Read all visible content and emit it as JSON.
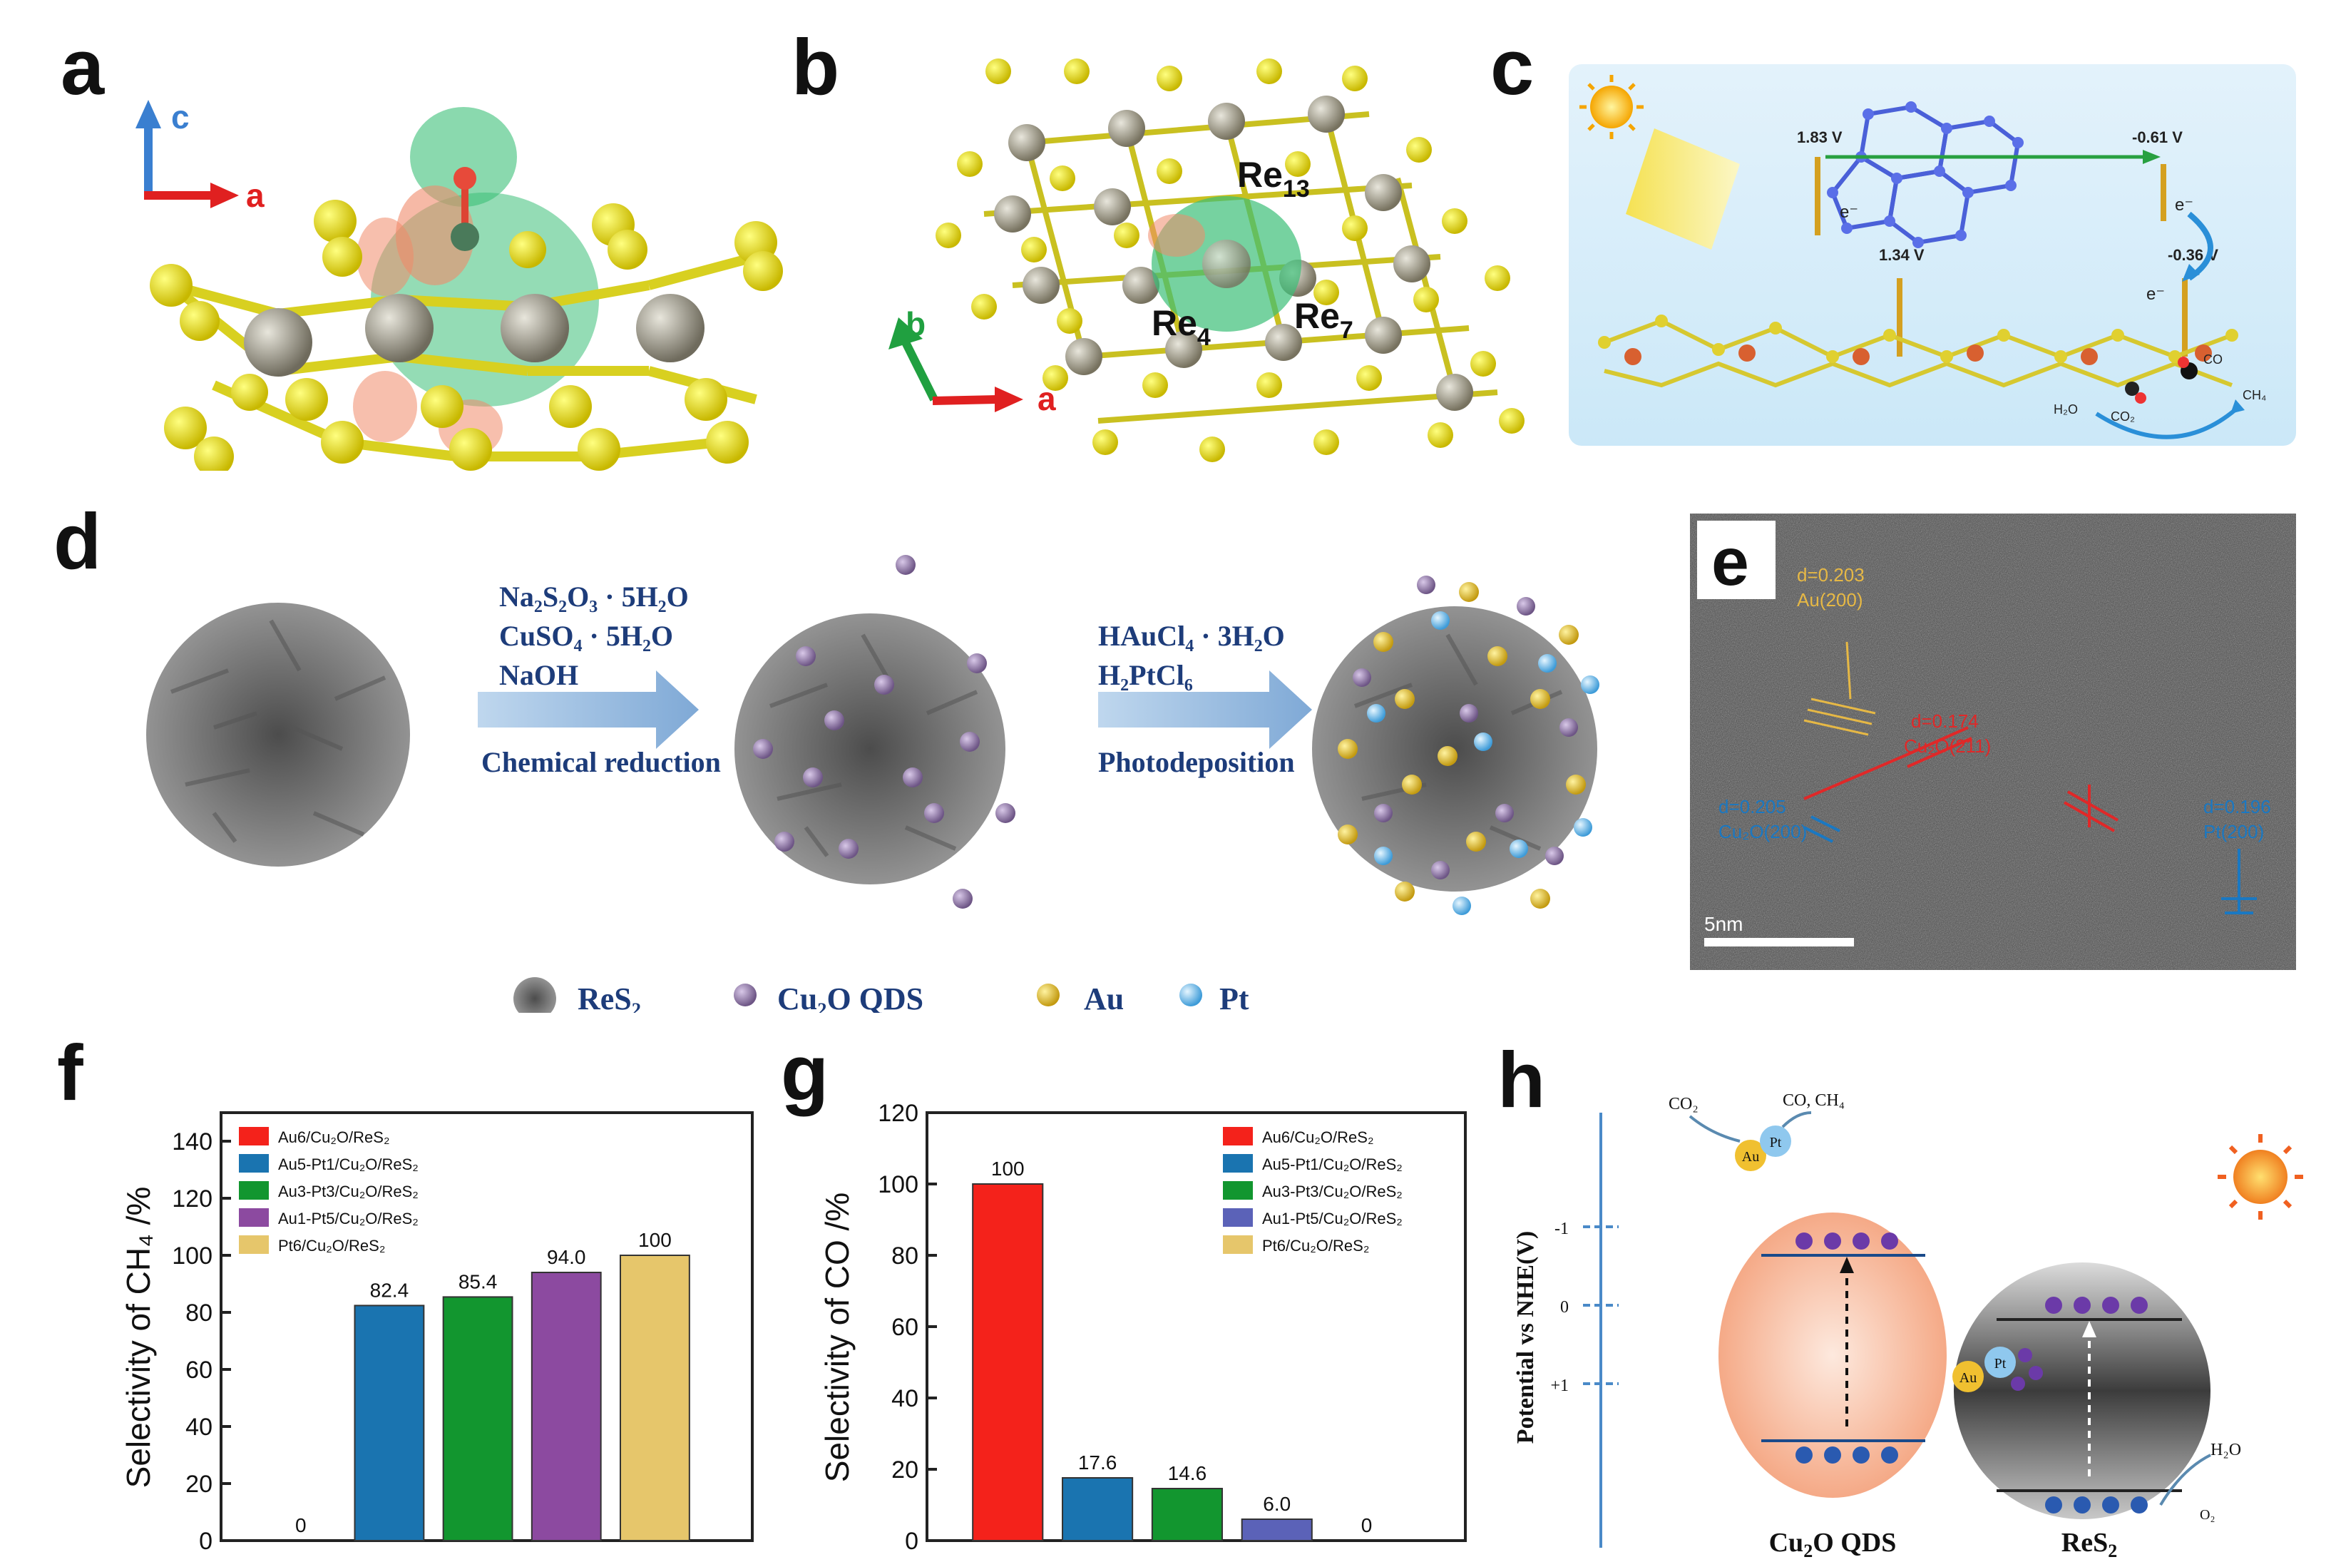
{
  "panels": {
    "a": "a",
    "b": "b",
    "c": "c",
    "d": "d",
    "e": "e",
    "f": "f",
    "g": "g",
    "h": "h"
  },
  "panel_a": {
    "axis_c": "c",
    "axis_a": "a"
  },
  "panel_b": {
    "axis_b": "b",
    "axis_a": "a",
    "atom_re13": "Re13",
    "atom_re4": "Re4",
    "atom_re7": "Re7"
  },
  "panel_c": {
    "v1": "1.83 V",
    "v2": "-0.61 V",
    "v3": "1.34 V",
    "v4": "-0.36 V",
    "electron": "e⁻",
    "h2o": "H₂O",
    "co2": "CO₂",
    "co": "CO",
    "ch4": "CH₄"
  },
  "panel_d": {
    "step1_reagents": [
      "Na₂S₂O₃ · 5H₂O",
      "CuSO₄ · 5H₂O",
      "NaOH"
    ],
    "step1_method": "Chemical reduction",
    "step2_reagents": [
      "HAuCl₄ · 3H₂O",
      "H₂PtCl₆"
    ],
    "step2_method": "Photodeposition",
    "legend": [
      "ReS₂",
      "Cu₂O QDS",
      "Au",
      "Pt"
    ]
  },
  "panel_e": {
    "d1": "d=0.203",
    "d1_plane": "Au(200)",
    "d2": "d=0.174",
    "d2_plane": "Cu₂O(211)",
    "d3": "d=0.205",
    "d3_plane": "Cu₂O(200)",
    "d4": "d=0.196",
    "d4_plane": "Pt(200)",
    "scale_bar": "5nm"
  },
  "colors": {
    "au6": "#f4221b",
    "au5pt1": "#1a74b0",
    "au3pt3": "#12962f",
    "au1pt5_f": "#8c4aa0",
    "au1pt5_g": "#5b62b8",
    "pt6": "#e6c66b"
  },
  "chart_data": [
    {
      "type": "bar",
      "panel": "f",
      "ylabel": "Selectivity of CH₄ /%",
      "ylim": [
        0,
        150
      ],
      "yticks": [
        "0",
        "20",
        "40",
        "60",
        "80",
        "100",
        "120",
        "140"
      ],
      "categories": [
        "Au6/Cu₂O/ReS₂",
        "Au5-Pt1/Cu₂O/ReS₂",
        "Au3-Pt3/Cu₂O/ReS₂",
        "Au1-Pt5/Cu₂O/ReS₂",
        "Pt6/Cu₂O/ReS₂"
      ],
      "values": [
        0,
        82.4,
        85.4,
        94.0,
        100
      ],
      "value_labels": [
        "0",
        "82.4",
        "85.4",
        "94.0",
        "100"
      ],
      "legend": "top-left"
    },
    {
      "type": "bar",
      "panel": "g",
      "ylabel": "Selectivity of CO /%",
      "ylim": [
        0,
        120
      ],
      "yticks": [
        "0",
        "20",
        "40",
        "60",
        "80",
        "100",
        "120"
      ],
      "categories": [
        "Au6/Cu₂O/ReS₂",
        "Au5-Pt1/Cu₂O/ReS₂",
        "Au3-Pt3/Cu₂O/ReS₂",
        "Au1-Pt5/Cu₂O/ReS₂",
        "Pt6/Cu₂O/ReS₂"
      ],
      "values": [
        100,
        17.6,
        14.6,
        6.0,
        0
      ],
      "value_labels": [
        "100",
        "17.6",
        "14.6",
        "6.0",
        "0"
      ],
      "legend": "top-right"
    }
  ],
  "panel_h": {
    "ylabel": "Potential vs NHE(V)",
    "ticks": [
      "-1",
      "0",
      "+1"
    ],
    "co2": "CO₂",
    "products": "CO, CH₄",
    "h2o": "H₂O",
    "o2": "O₂",
    "pt": "Pt",
    "au": "Au",
    "cu2o_label": "Cu₂O QDS",
    "res2_label": "ReS₂"
  }
}
